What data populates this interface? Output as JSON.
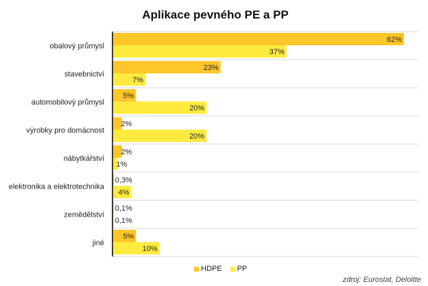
{
  "chart_data": {
    "type": "bar",
    "orientation": "horizontal",
    "title": "Aplikace pevného PE a PP",
    "categories": [
      "obalový průmysl",
      "stavebnictví",
      "automobilový průmysl",
      "výrobky pro domácnost",
      "nábytkářství",
      "elektronika a elektrotechnika",
      "zemědělství",
      "jiné"
    ],
    "series": [
      {
        "name": "HDPE",
        "color": "#FFC629",
        "values": [
          62,
          23,
          5,
          2,
          2,
          0.3,
          0.1,
          5
        ],
        "labels": [
          "62%",
          "23%",
          "5%",
          "2%",
          "2%",
          "0,3%",
          "0,1%",
          "5%"
        ]
      },
      {
        "name": "PP",
        "color": "#FFEB3F",
        "values": [
          37,
          7,
          20,
          20,
          1,
          4,
          0.1,
          10
        ],
        "labels": [
          "37%",
          "7%",
          "20%",
          "20%",
          "1%",
          "4%",
          "0,1%",
          "10%"
        ]
      }
    ],
    "xlim": [
      0,
      65
    ],
    "grid": true,
    "legend": "bottom",
    "xlabel": "",
    "ylabel": ""
  },
  "source": "zdroj: Eurostat,  Deloitte"
}
